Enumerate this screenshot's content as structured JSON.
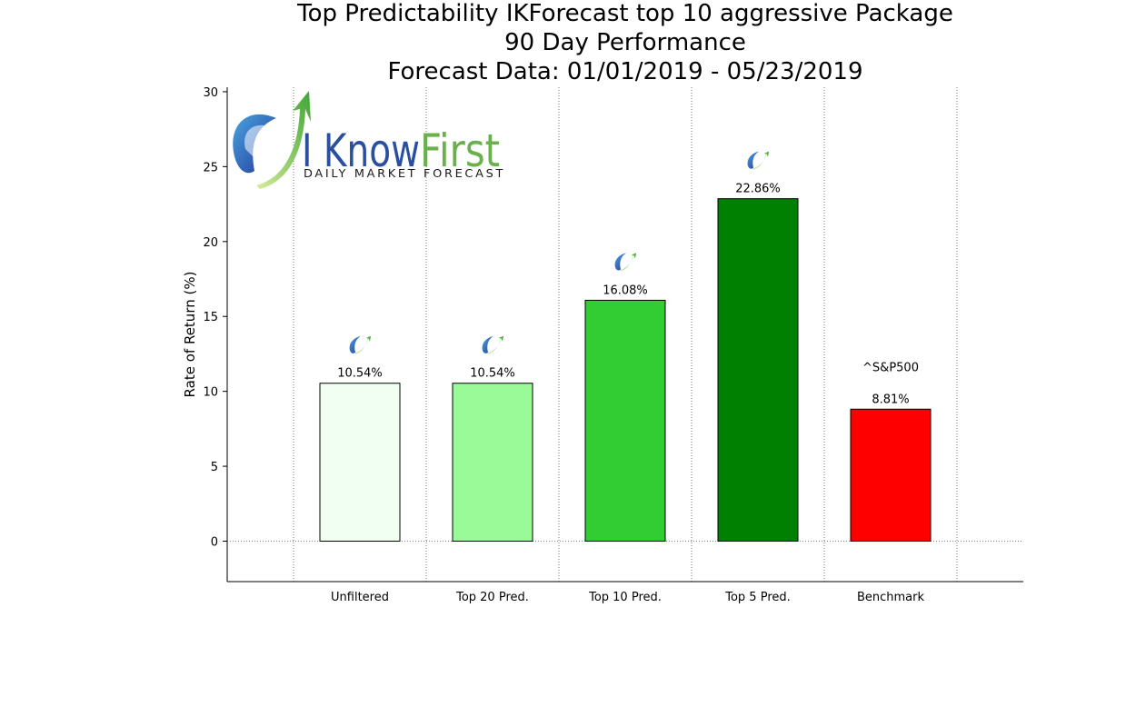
{
  "chart_data": {
    "type": "bar",
    "title": [
      "Top Predictability IKForecast top 10 aggressive Package",
      "90 Day Performance",
      "Forecast Data: 01/01/2019 - 05/23/2019"
    ],
    "ylabel": "Rate of Return (%)",
    "xlabel": "",
    "ylim": [
      -2.7,
      30.3
    ],
    "yticks": [
      0,
      5,
      10,
      15,
      20,
      25,
      30
    ],
    "categories": [
      "Unfiltered",
      "Top 20 Pred.",
      "Top 10 Pred.",
      "Top 5 Pred.",
      "Benchmark"
    ],
    "values": [
      10.54,
      10.54,
      16.08,
      22.86,
      8.81
    ],
    "value_labels": [
      "10.54%",
      "10.54%",
      "16.08%",
      "22.86%",
      "8.81%"
    ],
    "bar_colors": [
      "#f0fff0",
      "#98fb98",
      "#32cd32",
      "#008000",
      "#ff0000"
    ],
    "bar_icons": [
      true,
      true,
      true,
      true,
      false
    ],
    "benchmark_label": "^S&P500",
    "grid": "vertical dotted between categories; dotted zero line"
  },
  "logo": {
    "name_part1": "I Know",
    "name_part2": "First",
    "tagline": "Daily Market Forecast",
    "brand_blue": "#2b4fa0",
    "brand_green": "#6ab04c"
  }
}
